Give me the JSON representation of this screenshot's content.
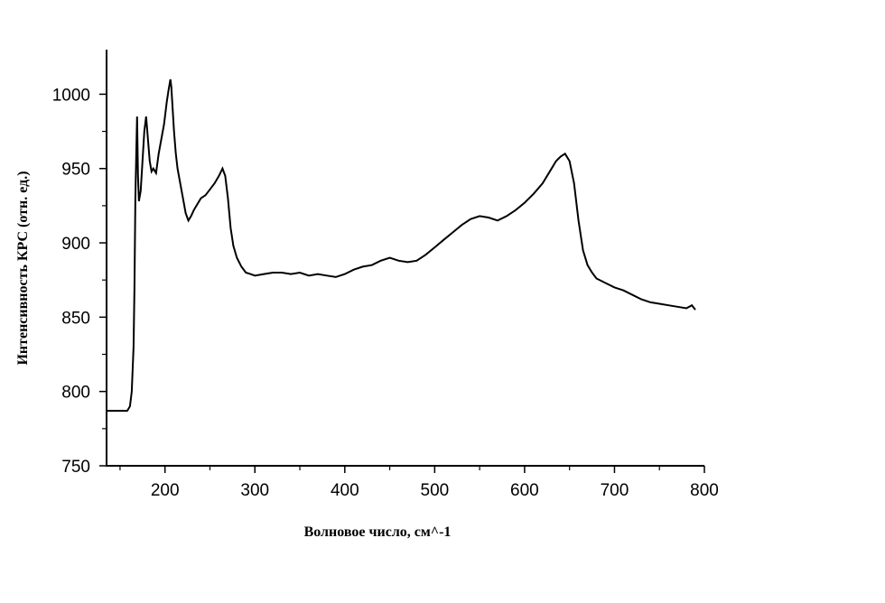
{
  "chart_data": {
    "type": "line",
    "title": "",
    "xlabel": "Волновое число, см^-1",
    "ylabel": "Интенсивность КРС (отн. ед.)",
    "xlim": [
      135,
      800
    ],
    "ylim": [
      750,
      1030
    ],
    "x_ticks": [
      200,
      300,
      400,
      500,
      600,
      700,
      800
    ],
    "y_ticks": [
      750,
      800,
      850,
      900,
      950,
      1000
    ],
    "grid": false,
    "legend": "none",
    "line_color": "#000000",
    "series": [
      {
        "x": [
          135,
          150,
          158,
          161,
          163,
          165,
          166,
          167,
          168,
          169,
          170,
          171,
          173,
          175,
          177,
          179,
          181,
          183,
          185,
          187,
          190,
          193,
          196,
          199,
          202,
          204,
          206,
          207,
          208,
          210,
          212,
          214,
          217,
          220,
          223,
          226,
          229,
          232,
          236,
          240,
          245,
          250,
          255,
          260,
          264,
          267,
          270,
          273,
          276,
          280,
          285,
          290,
          295,
          300,
          310,
          320,
          330,
          340,
          350,
          360,
          370,
          380,
          390,
          400,
          410,
          420,
          430,
          440,
          450,
          460,
          470,
          480,
          490,
          500,
          510,
          520,
          530,
          540,
          550,
          560,
          570,
          580,
          590,
          600,
          610,
          620,
          630,
          635,
          640,
          645,
          650,
          655,
          660,
          665,
          670,
          675,
          680,
          690,
          700,
          710,
          720,
          730,
          740,
          750,
          760,
          770,
          780,
          786,
          790
        ],
        "y": [
          787,
          787,
          787,
          790,
          800,
          830,
          870,
          930,
          960,
          985,
          945,
          928,
          935,
          955,
          975,
          985,
          970,
          955,
          948,
          950,
          947,
          960,
          970,
          980,
          995,
          1003,
          1010,
          1005,
          995,
          975,
          960,
          950,
          940,
          930,
          920,
          915,
          918,
          922,
          926,
          930,
          932,
          936,
          940,
          945,
          950,
          945,
          930,
          910,
          898,
          890,
          884,
          880,
          879,
          878,
          879,
          880,
          880,
          879,
          880,
          878,
          879,
          878,
          877,
          879,
          882,
          884,
          885,
          888,
          890,
          888,
          887,
          888,
          892,
          897,
          902,
          907,
          912,
          916,
          918,
          917,
          915,
          918,
          922,
          927,
          933,
          940,
          950,
          955,
          958,
          960,
          955,
          940,
          915,
          895,
          885,
          880,
          876,
          873,
          870,
          868,
          865,
          862,
          860,
          859,
          858,
          857,
          856,
          858,
          855
        ]
      }
    ]
  }
}
